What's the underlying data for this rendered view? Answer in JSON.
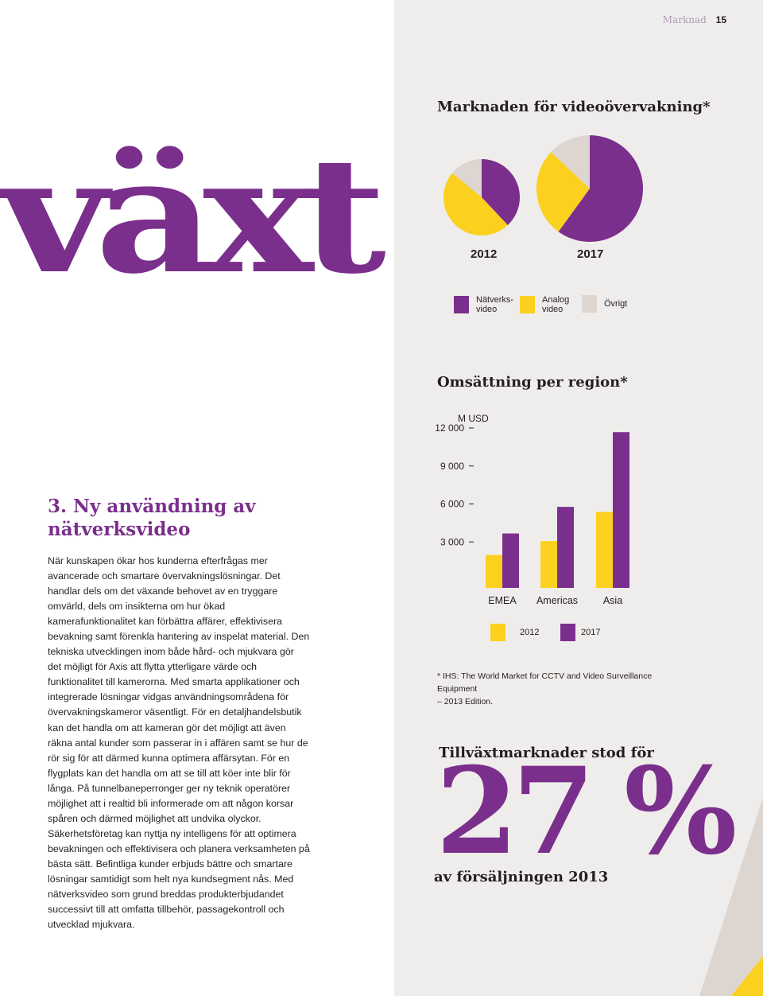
{
  "header": {
    "section": "Marknad",
    "page_number": "15"
  },
  "hero_word": "växt",
  "article": {
    "title": "3. Ny användning av nätverksvideo",
    "paragraph": "När kunskapen ökar hos kunderna efterfrågas mer avancerade och smartare övervakningslösningar. Det handlar dels om det växande behovet av en tryggare omvärld, dels om insikterna om hur ökad kamerafunktionalitet kan förbättra affärer, effektivisera bevakning samt förenkla hantering av inspelat material. Den tekniska utvecklingen inom både hård- och mjukvara gör det möjligt för Axis att flytta ytterligare värde och funktionalitet till kamerorna. Med smarta applikationer och integrerade lösningar vidgas användningsområdena för övervakningskameror väsentligt. För en detaljhandelsbutik kan det handla om att kameran gör det möjligt att även räkna antal kunder som passerar in i affären samt se hur de rör sig för att därmed kunna optimera affärsytan. För en flygplats kan det handla om att se till att köer inte blir för långa. På tunnelbaneperronger ger ny teknik operatörer möjlighet att i realtid bli informerade om att någon korsar spåren och därmed möjlighet att undvika olyckor. Säkerhetsföretag kan nyttja ny intelligens för att optimera bevakningen och effektivisera och planera verksamheten på bästa sätt. Befintliga kunder erbjuds bättre och smartare lösningar samtidigt som helt nya kundsegment nås. Med nätverksvideo som grund breddas produkterbjudandet successivt till att omfatta tillbehör, passagekontroll och utvecklad mjukvara."
  },
  "colors": {
    "network": "#7b2f8c",
    "analog": "#fcd01e",
    "other": "#ddd5d0",
    "panel": "#efedeb"
  },
  "chart_data": [
    {
      "type": "pie",
      "title": "Marknaden för videoövervakning*",
      "charts": [
        {
          "label": "2012",
          "slices": [
            {
              "name": "Nätverksvideo",
              "value": 38
            },
            {
              "name": "Analog video",
              "value": 48
            },
            {
              "name": "Övrigt",
              "value": 14
            }
          ]
        },
        {
          "label": "2017",
          "slices": [
            {
              "name": "Nätverksvideo",
              "value": 60
            },
            {
              "name": "Analog video",
              "value": 27
            },
            {
              "name": "Övrigt",
              "value": 13
            }
          ]
        }
      ],
      "legend": [
        {
          "label": "Nätverks-\nvideo",
          "key": "network"
        },
        {
          "label": "Analog\nvideo",
          "key": "analog"
        },
        {
          "label": "Övrigt",
          "key": "other"
        }
      ]
    },
    {
      "type": "bar",
      "title": "Omsättning per region*",
      "ylabel": "M USD",
      "ylim": [
        0,
        12000
      ],
      "yticks": [
        "3 000",
        "6 000",
        "9 000",
        "12 000"
      ],
      "ytick_values": [
        3000,
        6000,
        9000,
        12000
      ],
      "categories": [
        "EMEA",
        "Americas",
        "Asia"
      ],
      "series": [
        {
          "name": "2012",
          "values": [
            2600,
            3700,
            6000
          ],
          "color": "analog"
        },
        {
          "name": "2017",
          "values": [
            4300,
            6400,
            12300
          ],
          "color": "network"
        }
      ]
    }
  ],
  "footnote": {
    "line1": "* IHS: The World Market for CCTV and Video Surveillance Equipment",
    "line2": "– 2013 Edition."
  },
  "stat": {
    "title": "Tillväxtmarknader stod för",
    "value": "27 %",
    "subtitle": "av försäljningen 2013"
  }
}
